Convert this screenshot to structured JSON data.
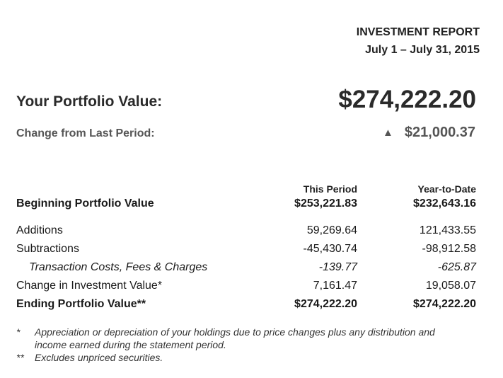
{
  "header": {
    "title": "INVESTMENT REPORT",
    "date_range": "July 1 – July 31, 2015"
  },
  "portfolio": {
    "value_label": "Your Portfolio Value:",
    "value": "$274,222.20",
    "change_label": "Change from Last Period:",
    "change_arrow": "▲",
    "change_value": "$21,000.37"
  },
  "table": {
    "headers": {
      "this_period": "This Period",
      "ytd": "Year-to-Date"
    },
    "rows": [
      {
        "label": "Beginning Portfolio Value",
        "this_period": "$253,221.83",
        "ytd": "$232,643.16"
      },
      {
        "label": "Additions",
        "this_period": "59,269.64",
        "ytd": "121,433.55"
      },
      {
        "label": "Subtractions",
        "this_period": "-45,430.74",
        "ytd": "-98,912.58"
      },
      {
        "label": "Transaction Costs, Fees & Charges",
        "this_period": "-139.77",
        "ytd": "-625.87"
      },
      {
        "label": "Change in Investment Value*",
        "this_period": "7,161.47",
        "ytd": "19,058.07"
      },
      {
        "label": "Ending Portfolio Value**",
        "this_period": "$274,222.20",
        "ytd": "$274,222.20"
      }
    ]
  },
  "footnotes": [
    {
      "mark": "*",
      "text": "Appreciation or depreciation of your holdings due to price changes plus any distribution and income earned during the statement period."
    },
    {
      "mark": "**",
      "text": "Excludes unpriced securities."
    }
  ],
  "colors": {
    "text_dark": "#2a2a2a",
    "text_muted": "#555555"
  }
}
